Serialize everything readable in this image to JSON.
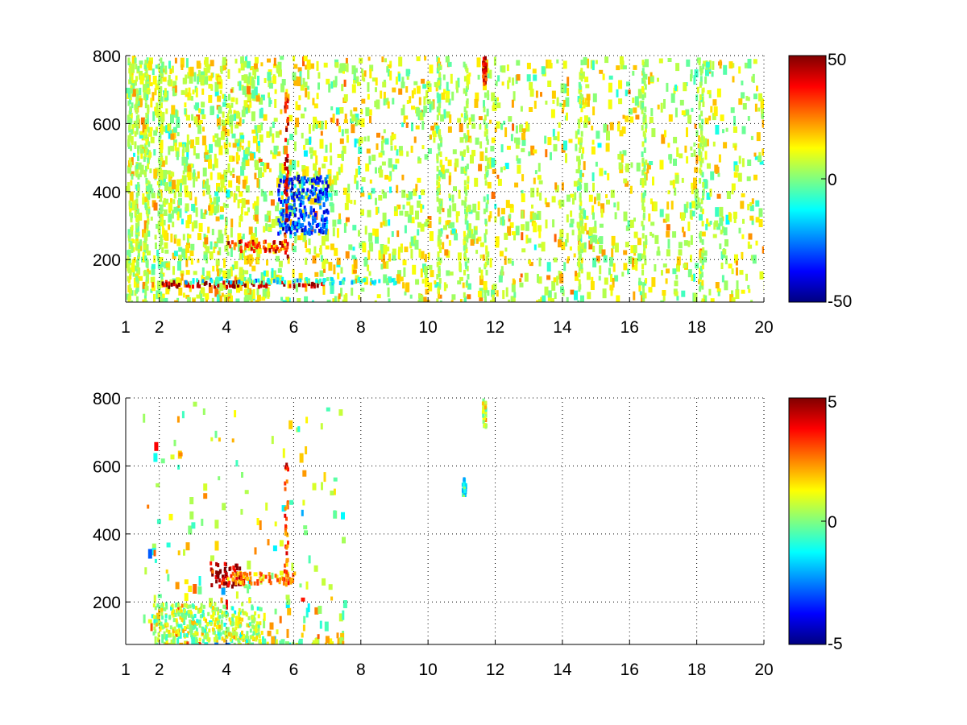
{
  "chart_data": [
    {
      "type": "heatmap",
      "title": "",
      "xlabel": "",
      "ylabel": "",
      "xlim": [
        1,
        20
      ],
      "ylim": [
        75,
        800
      ],
      "x_ticks": [
        1,
        2,
        4,
        6,
        8,
        10,
        12,
        14,
        16,
        18,
        20
      ],
      "y_ticks": [
        200,
        400,
        600,
        800
      ],
      "grid": true,
      "colormap": "jet",
      "colorbar": {
        "min": -50,
        "max": 50,
        "ticks": [
          50,
          0,
          -50
        ]
      },
      "features": [
        {
          "desc": "strong band",
          "x": [
            2.0,
            6.9
          ],
          "y": [
            125,
            140
          ],
          "value": 45
        },
        {
          "desc": "second band",
          "x": [
            2.5,
            9.2
          ],
          "y": [
            135,
            150
          ],
          "value": -10
        },
        {
          "desc": "ridge",
          "x": [
            4.0,
            5.8
          ],
          "y": [
            230,
            260
          ],
          "value": 35
        },
        {
          "desc": "cyan ridge",
          "x": [
            5.5,
            7.0
          ],
          "y": [
            280,
            450
          ],
          "value": -30
        },
        {
          "desc": "vertical streak",
          "x": [
            5.7,
            5.8
          ],
          "y": [
            200,
            700
          ],
          "value": 40
        },
        {
          "desc": "upper streak",
          "x": [
            11.6,
            11.7
          ],
          "y": [
            720,
            800
          ],
          "value": 40
        }
      ]
    },
    {
      "type": "heatmap",
      "title": "",
      "xlabel": "",
      "ylabel": "",
      "xlim": [
        1,
        20
      ],
      "ylim": [
        75,
        800
      ],
      "x_ticks": [
        1,
        2,
        4,
        6,
        8,
        10,
        12,
        14,
        16,
        18,
        20
      ],
      "y_ticks": [
        200,
        400,
        600,
        800
      ],
      "grid": true,
      "colormap": "jet",
      "colorbar": {
        "min": -5,
        "max": 5,
        "ticks": [
          5,
          0,
          -5
        ]
      },
      "features": [
        {
          "desc": "low cluster",
          "x": [
            1.8,
            5.0
          ],
          "y": [
            90,
            200
          ],
          "value": 0.5
        },
        {
          "desc": "red cluster",
          "x": [
            3.5,
            4.4
          ],
          "y": [
            250,
            320
          ],
          "value": 4.5
        },
        {
          "desc": "orange band",
          "x": [
            4.0,
            6.0
          ],
          "y": [
            255,
            290
          ],
          "value": 2.5
        },
        {
          "desc": "vertical streak",
          "x": [
            5.7,
            5.8
          ],
          "y": [
            250,
            620
          ],
          "value": 3
        },
        {
          "desc": "cyan patch",
          "x": [
            11.0,
            11.1
          ],
          "y": [
            520,
            570
          ],
          "value": -1.5
        },
        {
          "desc": "top streak",
          "x": [
            11.6,
            11.7
          ],
          "y": [
            720,
            800
          ],
          "value": 1
        }
      ]
    }
  ]
}
